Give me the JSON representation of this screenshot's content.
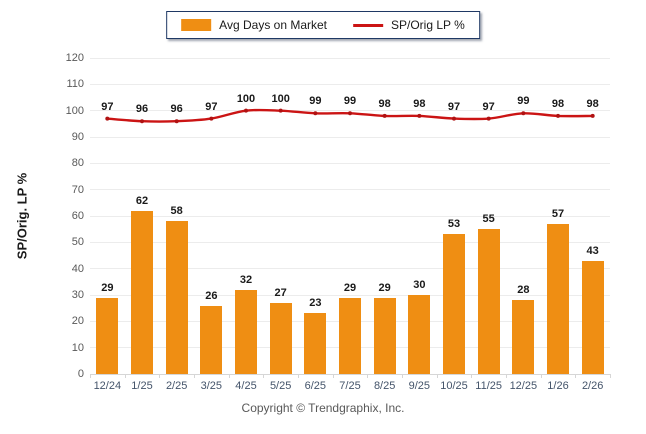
{
  "legend": {
    "bar_label": "Avg Days on Market",
    "line_label": "SP/Orig LP %"
  },
  "y_axis_title": "SP/Orig. LP %",
  "footer": "Copyright © Trendgraphix, Inc.",
  "colors": {
    "bar": "#EF8E13",
    "line": "#CB1414",
    "marker": "#B01212",
    "grid": "#ECECEC",
    "axis": "#D6D6D6",
    "ytick": "#595959",
    "xtick": "#44546A",
    "value": "#1A1A1A",
    "legend_border": "#1F3864",
    "footer_text": "#595959"
  },
  "chart_data": {
    "type": "combo",
    "categories": [
      "12/24",
      "1/25",
      "2/25",
      "3/25",
      "4/25",
      "5/25",
      "6/25",
      "7/25",
      "8/25",
      "9/25",
      "10/25",
      "11/25",
      "12/25",
      "1/26",
      "2/26"
    ],
    "series": [
      {
        "name": "Avg Days on Market",
        "type": "bar",
        "values": [
          29,
          62,
          58,
          26,
          32,
          27,
          23,
          29,
          29,
          30,
          53,
          55,
          28,
          57,
          43
        ]
      },
      {
        "name": "SP/Orig LP %",
        "type": "line",
        "values": [
          97,
          96,
          96,
          97,
          100,
          100,
          99,
          99,
          98,
          98,
          97,
          97,
          99,
          98,
          98
        ]
      }
    ],
    "title": "",
    "xlabel": "",
    "ylabel": "SP/Orig. LP %",
    "ylim": [
      0,
      120
    ],
    "ytick_step": 10,
    "grid": true,
    "legend_position": "top",
    "value_labels": true
  }
}
